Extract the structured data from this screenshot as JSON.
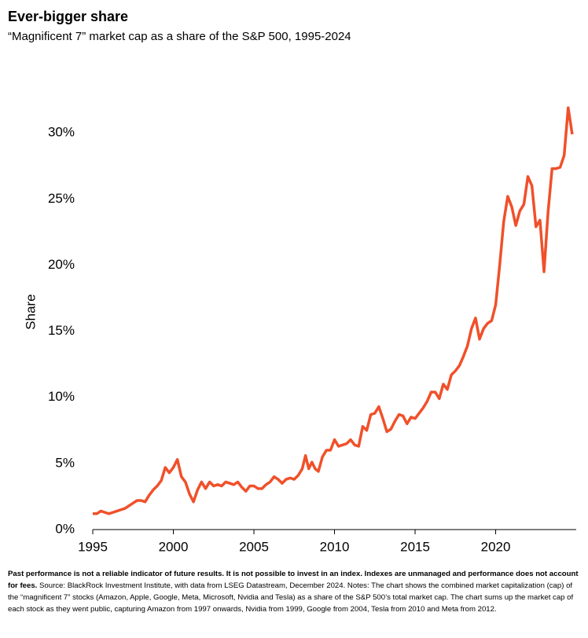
{
  "chart_data": {
    "type": "line",
    "title": "Ever-bigger share",
    "subtitle": "“Magnificent 7” market cap as a share of the S&P 500, 1995-2024",
    "ylabel": "Share",
    "color": "#f0502a",
    "x": [
      1995.0,
      1995.25,
      1995.5,
      1995.75,
      1996.0,
      1996.25,
      1996.5,
      1996.75,
      1997.0,
      1997.25,
      1997.5,
      1997.75,
      1998.0,
      1998.25,
      1998.5,
      1998.75,
      1999.0,
      1999.25,
      1999.5,
      1999.75,
      2000.0,
      2000.25,
      2000.5,
      2000.75,
      2001.0,
      2001.25,
      2001.5,
      2001.75,
      2002.0,
      2002.25,
      2002.5,
      2002.75,
      2003.0,
      2003.25,
      2003.5,
      2003.75,
      2004.0,
      2004.25,
      2004.5,
      2004.75,
      2005.0,
      2005.25,
      2005.5,
      2005.75,
      2006.0,
      2006.25,
      2006.5,
      2006.75,
      2007.0,
      2007.25,
      2007.5,
      2007.75,
      2008.0,
      2008.2,
      2008.4,
      2008.6,
      2008.8,
      2009.0,
      2009.25,
      2009.5,
      2009.75,
      2010.0,
      2010.25,
      2010.5,
      2010.75,
      2011.0,
      2011.25,
      2011.5,
      2011.75,
      2012.0,
      2012.25,
      2012.5,
      2012.75,
      2013.0,
      2013.25,
      2013.5,
      2013.75,
      2014.0,
      2014.25,
      2014.5,
      2014.75,
      2015.0,
      2015.25,
      2015.5,
      2015.75,
      2016.0,
      2016.25,
      2016.5,
      2016.75,
      2017.0,
      2017.25,
      2017.5,
      2017.75,
      2018.0,
      2018.25,
      2018.5,
      2018.75,
      2019.0,
      2019.25,
      2019.5,
      2019.75,
      2020.0,
      2020.25,
      2020.5,
      2020.75,
      2021.0,
      2021.25,
      2021.5,
      2021.75,
      2022.0,
      2022.25,
      2022.5,
      2022.75,
      2023.0,
      2023.25,
      2023.5,
      2023.75,
      2024.0,
      2024.25,
      2024.5,
      2024.75
    ],
    "values": [
      1.2,
      1.2,
      1.4,
      1.3,
      1.2,
      1.3,
      1.4,
      1.5,
      1.6,
      1.8,
      2.0,
      2.2,
      2.2,
      2.1,
      2.6,
      3.0,
      3.3,
      3.7,
      4.7,
      4.3,
      4.7,
      5.3,
      4.0,
      3.6,
      2.7,
      2.1,
      3.0,
      3.6,
      3.1,
      3.6,
      3.3,
      3.4,
      3.3,
      3.6,
      3.5,
      3.4,
      3.6,
      3.2,
      2.9,
      3.3,
      3.3,
      3.1,
      3.1,
      3.4,
      3.6,
      4.0,
      3.8,
      3.5,
      3.8,
      3.9,
      3.8,
      4.1,
      4.6,
      5.6,
      4.6,
      5.1,
      4.6,
      4.4,
      5.5,
      6.0,
      6.0,
      6.8,
      6.3,
      6.4,
      6.5,
      6.8,
      6.4,
      6.3,
      7.8,
      7.5,
      8.7,
      8.8,
      9.3,
      8.4,
      7.4,
      7.6,
      8.2,
      8.7,
      8.6,
      8.0,
      8.5,
      8.4,
      8.8,
      9.2,
      9.7,
      10.4,
      10.4,
      9.9,
      11.0,
      10.6,
      11.7,
      12.0,
      12.4,
      13.1,
      13.9,
      15.2,
      16.0,
      14.4,
      15.2,
      15.6,
      15.8,
      17.0,
      20.0,
      23.3,
      25.2,
      24.4,
      23.0,
      24.1,
      24.6,
      26.7,
      26.0,
      22.9,
      23.4,
      19.5,
      24.0,
      27.3,
      27.3,
      27.4,
      28.3,
      31.9,
      29.9
    ],
    "xlim": [
      1995,
      2024.9
    ],
    "xticks": [
      1995,
      2000,
      2005,
      2010,
      2015,
      2020
    ],
    "ylim": [
      0,
      32
    ],
    "yticks": [
      {
        "value": 0,
        "label": "0%"
      },
      {
        "value": 5,
        "label": "5%"
      },
      {
        "value": 10,
        "label": "10%"
      },
      {
        "value": 15,
        "label": "15%"
      },
      {
        "value": 20,
        "label": "20%"
      },
      {
        "value": 25,
        "label": "25%"
      },
      {
        "value": 30,
        "label": "30%"
      }
    ],
    "grid": false,
    "footnote_bold": "Past performance is not a reliable indicator of future results. It is not possible to invest in an index. Indexes are unmanaged and performance does not account for fees.",
    "footnote": "Source: BlackRock Investment Institute, with data from LSEG Datastream, December 2024. Notes: The chart shows the combined market capitalization (cap) of the “magnificent 7” stocks (Amazon, Apple, Google, Meta, Microsoft, Nvidia and Tesla) as a share of the S&P 500’s total market cap. The chart sums up the market cap of each stock as they went public, capturing Amazon from 1997 onwards, Nvidia from 1999, Google from 2004, Tesla from 2010 and Meta from 2012."
  }
}
